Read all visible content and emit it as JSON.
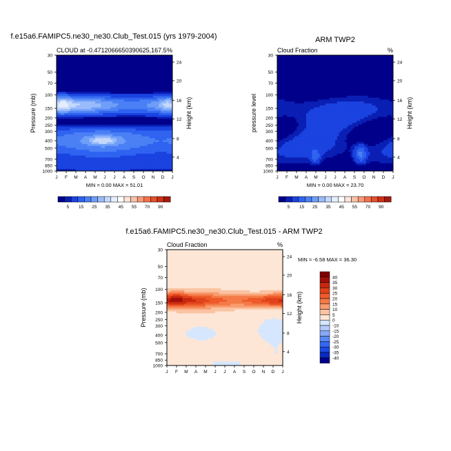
{
  "colors": {
    "seq": [
      "#00007a",
      "#0a1fb4",
      "#1a43e0",
      "#2f63f0",
      "#4b80f5",
      "#6f9ef8",
      "#99bbfb",
      "#c4d8fc",
      "#e6eefd",
      "#ffffff",
      "#fde3d8",
      "#fbc0a8",
      "#f89a78",
      "#f2724d",
      "#e5502e",
      "#cc321a",
      "#a51a0e",
      "#7f0000"
    ],
    "seq_top": "#00008b",
    "diff": [
      "#00008b",
      "#0a2ac0",
      "#1a4ae4",
      "#3468f2",
      "#5a88f5",
      "#86a8f8",
      "#b1c9fb",
      "#d6e7fd",
      "#fde6d6",
      "#fbc3a2",
      "#f89d70",
      "#f47a48",
      "#ee5a2a",
      "#e0421a",
      "#c6280f",
      "#a0100a",
      "#7f0000"
    ],
    "frame": "#000000"
  },
  "chart_data": [
    {
      "type": "heatmap",
      "title": "f.e15a6.FAMIPC5.ne30_ne30.Club_Test.015 (yrs 1979-2004)",
      "subtitle_left": "CLOUD at -0.4712066650390625,167.5",
      "subtitle_right": "%",
      "ylabel": "Pressure (mb)",
      "ylabel_right": "Height (km)",
      "stats": "MIN =   0.00 MAX =  51.01",
      "x": [
        "J",
        "F",
        "M",
        "A",
        "M",
        "J",
        "J",
        "A",
        "S",
        "O",
        "N",
        "D",
        "J"
      ],
      "yticks": [
        "30",
        "50",
        "70",
        "100",
        "150",
        "200",
        "250",
        "300",
        "400",
        "500",
        "700",
        "850",
        "1000"
      ],
      "yticks_right": [
        "24",
        "20",
        "16",
        "12",
        "8",
        "4"
      ],
      "colorbar_labels": [
        "5",
        "15",
        "25",
        "35",
        "45",
        "55",
        "70",
        "90"
      ],
      "levels": [
        3,
        5,
        10,
        15,
        20,
        25,
        30,
        35,
        40,
        45,
        50,
        55,
        60,
        70,
        80,
        90
      ],
      "profile_pressure_mb": [
        30,
        50,
        70,
        100,
        150,
        200,
        250,
        300,
        400,
        500,
        700,
        850,
        1000
      ],
      "profile_value": [
        0,
        0,
        3,
        28,
        40,
        30,
        18,
        22,
        26,
        20,
        16,
        10,
        4
      ]
    },
    {
      "type": "heatmap",
      "title": "ARM TWP2",
      "subtitle_left": "Cloud Fraction",
      "subtitle_right": "%",
      "ylabel": "pressure level",
      "ylabel_right": "Height (km)",
      "stats": "MIN =   0.00 MAX =  23.70",
      "x": [
        "J",
        "F",
        "M",
        "A",
        "M",
        "J",
        "J",
        "A",
        "S",
        "O",
        "N",
        "D",
        "J"
      ],
      "yticks": [
        "30",
        "50",
        "70",
        "100",
        "150",
        "200",
        "250",
        "300",
        "400",
        "500",
        "700",
        "850",
        "1000"
      ],
      "yticks_right": [
        "24",
        "20",
        "16",
        "12",
        "8",
        "4"
      ],
      "colorbar_labels": [
        "5",
        "15",
        "25",
        "35",
        "45",
        "55",
        "70",
        "90"
      ],
      "levels": [
        3,
        5,
        10,
        15,
        20,
        25,
        30,
        35,
        40,
        45,
        50,
        55,
        60,
        70,
        80,
        90
      ],
      "profile_pressure_mb": [
        30,
        50,
        70,
        100,
        150,
        200,
        250,
        300,
        400,
        500,
        700,
        850,
        1000
      ],
      "profile_value": [
        0,
        0,
        1,
        3,
        6,
        8,
        7,
        6,
        5,
        5,
        5,
        4,
        2
      ]
    },
    {
      "type": "heatmap",
      "title": "f.e15a6.FAMIPC5.ne30_ne30.Club_Test.015 - ARM TWP2",
      "subtitle_left": "Cloud Fraction",
      "subtitle_right": "%",
      "ylabel": "Pressure (mb)",
      "ylabel_right": "Height (km)",
      "stats": "MIN = -6.58 MAX =  36.30",
      "x": [
        "J",
        "F",
        "M",
        "A",
        "M",
        "J",
        "J",
        "A",
        "S",
        "O",
        "N",
        "D",
        "J"
      ],
      "yticks": [
        "30",
        "50",
        "70",
        "100",
        "150",
        "200",
        "250",
        "300",
        "400",
        "500",
        "700",
        "850",
        "1000"
      ],
      "yticks_right": [
        "24",
        "20",
        "16",
        "12",
        "8",
        "4"
      ],
      "colorbar_labels": [
        "40",
        "35",
        "30",
        "25",
        "20",
        "15",
        "10",
        "5",
        "0",
        "-10",
        "-15",
        "-20",
        "-25",
        "-30",
        "-35",
        "-40"
      ],
      "levels": [
        -40,
        -35,
        -30,
        -25,
        -20,
        -15,
        -10,
        -5,
        0,
        5,
        10,
        15,
        20,
        25,
        30,
        35,
        40
      ],
      "profile_pressure_mb": [
        30,
        50,
        70,
        100,
        150,
        200,
        250,
        300,
        400,
        500,
        700,
        850,
        1000
      ],
      "profile_value": [
        0,
        1,
        2,
        20,
        28,
        14,
        5,
        3,
        1,
        1,
        2,
        3,
        0
      ]
    }
  ]
}
